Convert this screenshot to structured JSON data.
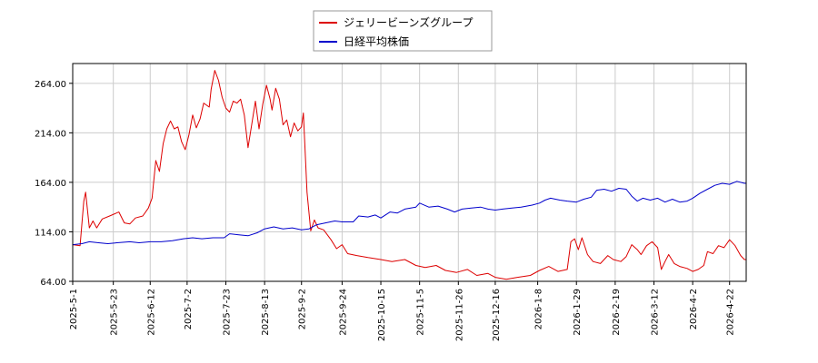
{
  "chart_data": {
    "type": "line",
    "title": "",
    "xlabel": "",
    "ylabel": "",
    "grid": true,
    "legend_position": "top-center",
    "ylim": [
      64,
      284
    ],
    "xlim": [
      "2025-05-01",
      "2026-05-01"
    ],
    "y_ticks": [
      64,
      114,
      164,
      214,
      264
    ],
    "y_tick_labels": [
      "64.00",
      "114.00",
      "164.00",
      "214.00",
      "264.00"
    ],
    "x_ticks": [
      "2025-05-01",
      "2025-05-23",
      "2025-06-12",
      "2025-07-02",
      "2025-07-23",
      "2025-08-13",
      "2025-09-02",
      "2025-09-24",
      "2025-10-15",
      "2025-11-05",
      "2025-11-26",
      "2025-12-16",
      "2026-01-08",
      "2026-01-29",
      "2026-02-19",
      "2026-03-12",
      "2026-04-02",
      "2026-04-22"
    ],
    "x_tick_labels": [
      "2025-5-1",
      "2025-5-23",
      "2025-6-12",
      "2025-7-2",
      "2025-7-23",
      "2025-8-13",
      "2025-9-2",
      "2025-9-24",
      "2025-10-15",
      "2025-11-5",
      "2025-11-26",
      "2025-12-16",
      "2026-1-8",
      "2026-1-29",
      "2026-2-19",
      "2026-3-12",
      "2026-4-2",
      "2026-4-22"
    ],
    "series": [
      {
        "name": "ジェリービーンズグループ",
        "color": "#dd0000",
        "points": [
          [
            "2025-05-01",
            101
          ],
          [
            "2025-05-05",
            100
          ],
          [
            "2025-05-07",
            145
          ],
          [
            "2025-05-08",
            154
          ],
          [
            "2025-05-10",
            118
          ],
          [
            "2025-05-12",
            125
          ],
          [
            "2025-05-14",
            118
          ],
          [
            "2025-05-17",
            127
          ],
          [
            "2025-05-21",
            130
          ],
          [
            "2025-05-26",
            134
          ],
          [
            "2025-05-29",
            123
          ],
          [
            "2025-06-01",
            122
          ],
          [
            "2025-06-04",
            128
          ],
          [
            "2025-06-08",
            130
          ],
          [
            "2025-06-11",
            138
          ],
          [
            "2025-06-13",
            148
          ],
          [
            "2025-06-15",
            186
          ],
          [
            "2025-06-17",
            175
          ],
          [
            "2025-06-19",
            203
          ],
          [
            "2025-06-21",
            218
          ],
          [
            "2025-06-23",
            226
          ],
          [
            "2025-06-25",
            218
          ],
          [
            "2025-06-27",
            220
          ],
          [
            "2025-06-29",
            205
          ],
          [
            "2025-07-01",
            197
          ],
          [
            "2025-07-03",
            212
          ],
          [
            "2025-07-05",
            232
          ],
          [
            "2025-07-07",
            219
          ],
          [
            "2025-07-09",
            228
          ],
          [
            "2025-07-11",
            244
          ],
          [
            "2025-07-14",
            240
          ],
          [
            "2025-07-15",
            258
          ],
          [
            "2025-07-17",
            277
          ],
          [
            "2025-07-19",
            267
          ],
          [
            "2025-07-21",
            250
          ],
          [
            "2025-07-23",
            239
          ],
          [
            "2025-07-25",
            235
          ],
          [
            "2025-07-27",
            246
          ],
          [
            "2025-07-29",
            244
          ],
          [
            "2025-07-31",
            248
          ],
          [
            "2025-08-02",
            232
          ],
          [
            "2025-08-04",
            199
          ],
          [
            "2025-08-06",
            222
          ],
          [
            "2025-08-08",
            246
          ],
          [
            "2025-08-10",
            218
          ],
          [
            "2025-08-12",
            243
          ],
          [
            "2025-08-14",
            262
          ],
          [
            "2025-08-16",
            248
          ],
          [
            "2025-08-17",
            237
          ],
          [
            "2025-08-19",
            259
          ],
          [
            "2025-08-21",
            248
          ],
          [
            "2025-08-23",
            222
          ],
          [
            "2025-08-25",
            227
          ],
          [
            "2025-08-27",
            210
          ],
          [
            "2025-08-29",
            224
          ],
          [
            "2025-08-31",
            216
          ],
          [
            "2025-09-02",
            220
          ],
          [
            "2025-09-03",
            234
          ],
          [
            "2025-09-05",
            154
          ],
          [
            "2025-09-07",
            115
          ],
          [
            "2025-09-09",
            126
          ],
          [
            "2025-09-11",
            118
          ],
          [
            "2025-09-14",
            116
          ],
          [
            "2025-09-18",
            106
          ],
          [
            "2025-09-21",
            97
          ],
          [
            "2025-09-24",
            101
          ],
          [
            "2025-09-27",
            92
          ],
          [
            "2025-10-02",
            90
          ],
          [
            "2025-10-08",
            88
          ],
          [
            "2025-10-15",
            86
          ],
          [
            "2025-10-21",
            84
          ],
          [
            "2025-10-28",
            86
          ],
          [
            "2025-11-03",
            80
          ],
          [
            "2025-11-08",
            78
          ],
          [
            "2025-11-14",
            80
          ],
          [
            "2025-11-19",
            75
          ],
          [
            "2025-11-25",
            73
          ],
          [
            "2025-12-01",
            76
          ],
          [
            "2025-12-06",
            70
          ],
          [
            "2025-12-12",
            72
          ],
          [
            "2025-12-16",
            68
          ],
          [
            "2025-12-22",
            66
          ],
          [
            "2025-12-28",
            68
          ],
          [
            "2026-01-04",
            70
          ],
          [
            "2026-01-09",
            75
          ],
          [
            "2026-01-14",
            79
          ],
          [
            "2026-01-19",
            74
          ],
          [
            "2026-01-24",
            76
          ],
          [
            "2026-01-26",
            104
          ],
          [
            "2026-01-28",
            107
          ],
          [
            "2026-01-30",
            96
          ],
          [
            "2026-02-01",
            108
          ],
          [
            "2026-02-04",
            91
          ],
          [
            "2026-02-07",
            84
          ],
          [
            "2026-02-11",
            82
          ],
          [
            "2026-02-15",
            90
          ],
          [
            "2026-02-18",
            86
          ],
          [
            "2026-02-22",
            84
          ],
          [
            "2026-02-25",
            89
          ],
          [
            "2026-02-28",
            101
          ],
          [
            "2026-03-03",
            96
          ],
          [
            "2026-03-05",
            91
          ],
          [
            "2026-03-08",
            100
          ],
          [
            "2026-03-11",
            104
          ],
          [
            "2026-03-14",
            98
          ],
          [
            "2026-03-16",
            76
          ],
          [
            "2026-03-18",
            84
          ],
          [
            "2026-03-20",
            91
          ],
          [
            "2026-03-23",
            82
          ],
          [
            "2026-03-26",
            79
          ],
          [
            "2026-03-30",
            77
          ],
          [
            "2026-04-02",
            74
          ],
          [
            "2026-04-05",
            76
          ],
          [
            "2026-04-08",
            80
          ],
          [
            "2026-04-10",
            94
          ],
          [
            "2026-04-13",
            92
          ],
          [
            "2026-04-16",
            100
          ],
          [
            "2026-04-19",
            98
          ],
          [
            "2026-04-22",
            106
          ],
          [
            "2026-04-25",
            100
          ],
          [
            "2026-04-28",
            90
          ],
          [
            "2026-04-30",
            86
          ],
          [
            "2026-05-01",
            86
          ]
        ]
      },
      {
        "name": "日経平均株価",
        "color": "#0000cc",
        "points": [
          [
            "2025-05-01",
            101
          ],
          [
            "2025-05-06",
            102
          ],
          [
            "2025-05-10",
            104
          ],
          [
            "2025-05-15",
            103
          ],
          [
            "2025-05-20",
            102
          ],
          [
            "2025-05-25",
            103
          ],
          [
            "2025-06-01",
            104
          ],
          [
            "2025-06-06",
            103
          ],
          [
            "2025-06-12",
            104
          ],
          [
            "2025-06-18",
            104
          ],
          [
            "2025-06-24",
            105
          ],
          [
            "2025-06-30",
            107
          ],
          [
            "2025-07-05",
            108
          ],
          [
            "2025-07-10",
            107
          ],
          [
            "2025-07-16",
            108
          ],
          [
            "2025-07-22",
            108
          ],
          [
            "2025-07-25",
            112
          ],
          [
            "2025-07-30",
            111
          ],
          [
            "2025-08-04",
            110
          ],
          [
            "2025-08-09",
            113
          ],
          [
            "2025-08-13",
            117
          ],
          [
            "2025-08-18",
            119
          ],
          [
            "2025-08-23",
            117
          ],
          [
            "2025-08-28",
            118
          ],
          [
            "2025-09-02",
            116
          ],
          [
            "2025-09-06",
            117
          ],
          [
            "2025-09-10",
            121
          ],
          [
            "2025-09-15",
            123
          ],
          [
            "2025-09-20",
            125
          ],
          [
            "2025-09-24",
            124
          ],
          [
            "2025-09-30",
            124
          ],
          [
            "2025-10-03",
            130
          ],
          [
            "2025-10-08",
            129
          ],
          [
            "2025-10-12",
            131
          ],
          [
            "2025-10-15",
            128
          ],
          [
            "2025-10-20",
            134
          ],
          [
            "2025-10-24",
            133
          ],
          [
            "2025-10-28",
            137
          ],
          [
            "2025-11-03",
            139
          ],
          [
            "2025-11-05",
            143
          ],
          [
            "2025-11-10",
            139
          ],
          [
            "2025-11-15",
            140
          ],
          [
            "2025-11-20",
            137
          ],
          [
            "2025-11-24",
            134
          ],
          [
            "2025-11-28",
            137
          ],
          [
            "2025-12-03",
            138
          ],
          [
            "2025-12-08",
            139
          ],
          [
            "2025-12-12",
            137
          ],
          [
            "2025-12-16",
            136
          ],
          [
            "2025-12-20",
            137
          ],
          [
            "2025-12-25",
            138
          ],
          [
            "2025-12-30",
            139
          ],
          [
            "2026-01-05",
            141
          ],
          [
            "2026-01-09",
            143
          ],
          [
            "2026-01-12",
            146
          ],
          [
            "2026-01-15",
            148
          ],
          [
            "2026-01-20",
            146
          ],
          [
            "2026-01-24",
            145
          ],
          [
            "2026-01-29",
            144
          ],
          [
            "2026-02-02",
            147
          ],
          [
            "2026-02-06",
            149
          ],
          [
            "2026-02-09",
            156
          ],
          [
            "2026-02-13",
            157
          ],
          [
            "2026-02-17",
            155
          ],
          [
            "2026-02-21",
            158
          ],
          [
            "2026-02-25",
            157
          ],
          [
            "2026-02-28",
            150
          ],
          [
            "2026-03-03",
            145
          ],
          [
            "2026-03-06",
            148
          ],
          [
            "2026-03-10",
            146
          ],
          [
            "2026-03-14",
            148
          ],
          [
            "2026-03-18",
            144
          ],
          [
            "2026-03-22",
            147
          ],
          [
            "2026-03-26",
            144
          ],
          [
            "2026-03-30",
            145
          ],
          [
            "2026-04-02",
            148
          ],
          [
            "2026-04-06",
            153
          ],
          [
            "2026-04-10",
            157
          ],
          [
            "2026-04-14",
            161
          ],
          [
            "2026-04-18",
            163
          ],
          [
            "2026-04-22",
            162
          ],
          [
            "2026-04-26",
            165
          ],
          [
            "2026-04-30",
            163
          ],
          [
            "2026-05-01",
            163
          ]
        ]
      }
    ]
  }
}
